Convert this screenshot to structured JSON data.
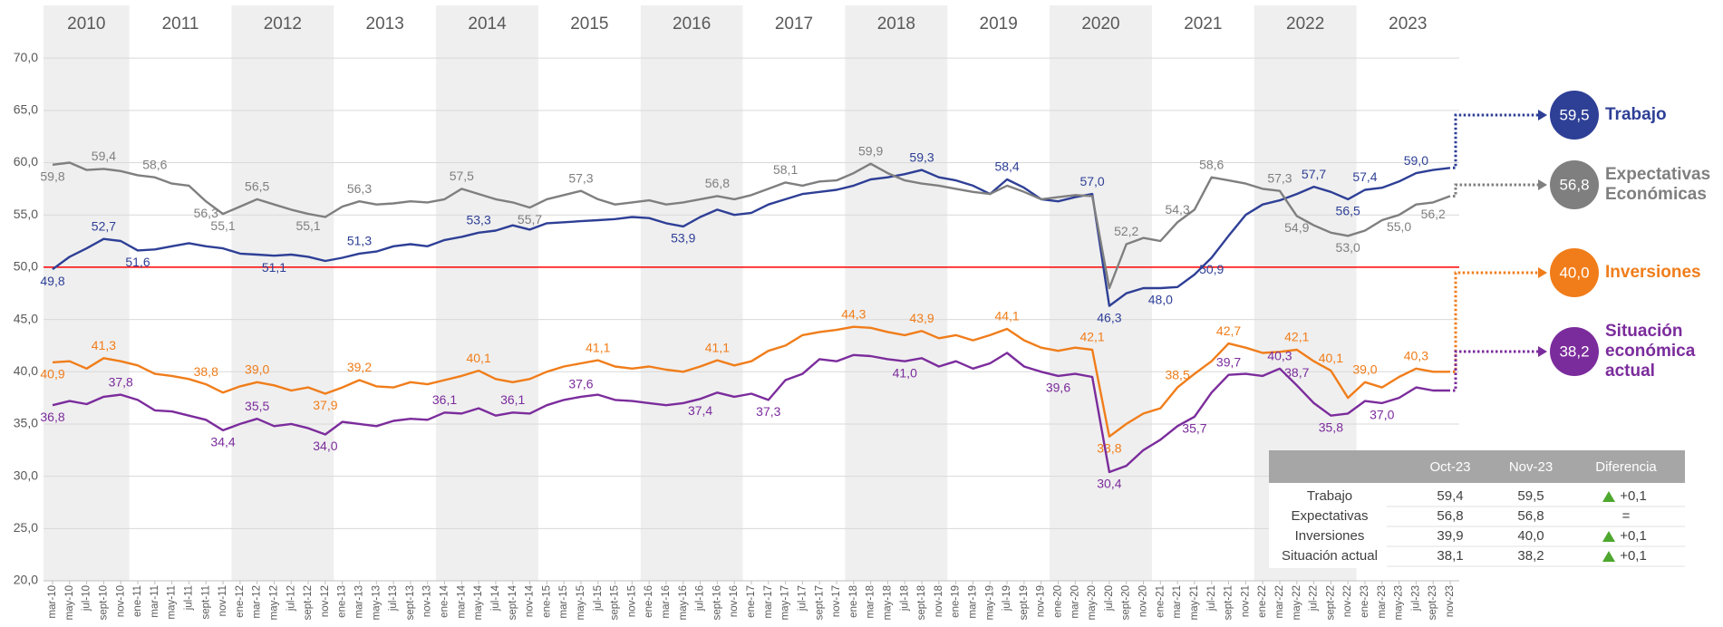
{
  "chart_data": {
    "type": "line",
    "years": [
      "2010",
      "2011",
      "2012",
      "2013",
      "2014",
      "2015",
      "2016",
      "2017",
      "2018",
      "2019",
      "2020",
      "2021",
      "2022",
      "2023"
    ],
    "categories": [
      "mar-10",
      "may-10",
      "jul-10",
      "sept-10",
      "nov-10",
      "ene-11",
      "mar-11",
      "may-11",
      "jul-11",
      "sept-11",
      "nov-11",
      "ene-12",
      "mar-12",
      "may-12",
      "jul-12",
      "sept-12",
      "nov-12",
      "ene-13",
      "mar-13",
      "may-13",
      "jul-13",
      "sept-13",
      "nov-13",
      "ene-14",
      "mar-14",
      "may-14",
      "jul-14",
      "sept-14",
      "nov-14",
      "ene-15",
      "mar-15",
      "may-15",
      "jul-15",
      "sept-15",
      "nov-15",
      "ene-16",
      "mar-16",
      "may-16",
      "jul-16",
      "sept-16",
      "nov-16",
      "ene-17",
      "mar-17",
      "may-17",
      "jul-17",
      "sept-17",
      "nov-17",
      "ene-18",
      "mar-18",
      "may-18",
      "jul-18",
      "sept-18",
      "nov-18",
      "ene-19",
      "mar-19",
      "may-19",
      "jul-19",
      "sept-19",
      "nov-19",
      "ene-20",
      "mar-20",
      "may-20",
      "jul-20",
      "sept-20",
      "nov-20",
      "ene-21",
      "mar-21",
      "may-21",
      "jul-21",
      "sept-21",
      "nov-21",
      "ene-22",
      "mar-22",
      "may-22",
      "jul-22",
      "sept-22",
      "nov-22",
      "ene-23",
      "mar-23",
      "may-23",
      "jul-23",
      "sept-23",
      "nov-23"
    ],
    "ylim": [
      20,
      71.4
    ],
    "yticks": [
      {
        "value": 20,
        "label": "20,0"
      },
      {
        "value": 25,
        "label": "25,0"
      },
      {
        "value": 30,
        "label": "30,0"
      },
      {
        "value": 35,
        "label": "35,0"
      },
      {
        "value": 40,
        "label": "40,0"
      },
      {
        "value": 45,
        "label": "45,0"
      },
      {
        "value": 50,
        "label": "50,0"
      },
      {
        "value": 55,
        "label": "55,0"
      },
      {
        "value": 60,
        "label": "60,0"
      },
      {
        "value": 65,
        "label": "65,0"
      },
      {
        "value": 70,
        "label": "70,0"
      }
    ],
    "grid": true,
    "reference_line": {
      "value": 50,
      "color": "#ff0000"
    },
    "series": [
      {
        "name": "Trabajo",
        "color": "#2e3f96",
        "values": [
          49.8,
          51.0,
          51.8,
          52.7,
          52.5,
          51.6,
          51.7,
          52.0,
          52.3,
          52.0,
          51.8,
          51.3,
          51.2,
          51.1,
          51.2,
          51.0,
          50.6,
          50.9,
          51.3,
          51.5,
          52.0,
          52.2,
          52.0,
          52.6,
          52.9,
          53.3,
          53.5,
          54.0,
          53.6,
          54.2,
          54.3,
          54.4,
          54.5,
          54.6,
          54.8,
          54.7,
          54.2,
          53.9,
          54.8,
          55.5,
          55.0,
          55.2,
          56.0,
          56.5,
          57.0,
          57.2,
          57.4,
          57.8,
          58.4,
          58.6,
          58.9,
          59.3,
          58.6,
          58.3,
          57.8,
          57.0,
          58.4,
          57.6,
          56.5,
          56.3,
          56.7,
          57.0,
          46.3,
          47.5,
          48.0,
          48.0,
          48.1,
          49.3,
          50.9,
          53.0,
          55.0,
          56.0,
          56.4,
          57.0,
          57.7,
          57.2,
          56.5,
          57.4,
          57.6,
          58.2,
          59.0,
          59.3,
          59.5
        ],
        "value_labels": [
          "49,8",
          null,
          null,
          "52,7",
          null,
          "51,6",
          null,
          null,
          null,
          null,
          null,
          null,
          null,
          "51,1",
          null,
          null,
          null,
          null,
          "51,3",
          null,
          null,
          null,
          null,
          null,
          null,
          "53,3",
          null,
          null,
          null,
          null,
          null,
          null,
          null,
          null,
          null,
          null,
          null,
          "53,9",
          null,
          null,
          null,
          null,
          null,
          null,
          null,
          null,
          null,
          null,
          null,
          null,
          null,
          "59,3",
          null,
          null,
          null,
          null,
          "58,4",
          null,
          null,
          null,
          null,
          "57,0",
          "46,3",
          null,
          null,
          "48,0",
          null,
          null,
          "50,9",
          null,
          null,
          null,
          null,
          null,
          "57,7",
          null,
          "56,5",
          "57,4",
          null,
          null,
          "59,0",
          null,
          "59,5"
        ]
      },
      {
        "name": "Expectativas Económicas",
        "color": "#7f7f7f",
        "values": [
          59.8,
          60.0,
          59.3,
          59.4,
          59.2,
          58.8,
          58.6,
          58.0,
          57.8,
          56.3,
          55.1,
          55.8,
          56.5,
          56.0,
          55.5,
          55.1,
          54.8,
          55.8,
          56.3,
          56.0,
          56.1,
          56.3,
          56.2,
          56.5,
          57.5,
          57.0,
          56.5,
          56.2,
          55.7,
          56.5,
          56.9,
          57.3,
          56.5,
          56.0,
          56.2,
          56.4,
          56.0,
          56.2,
          56.5,
          56.8,
          56.5,
          56.9,
          57.5,
          58.1,
          57.8,
          58.2,
          58.3,
          59.0,
          59.9,
          59.0,
          58.3,
          58.0,
          57.8,
          57.5,
          57.2,
          57.0,
          57.8,
          57.2,
          56.5,
          56.7,
          56.9,
          56.8,
          48.0,
          52.2,
          52.8,
          52.5,
          54.3,
          55.5,
          58.6,
          58.3,
          58.0,
          57.5,
          57.3,
          54.9,
          54.0,
          53.3,
          53.0,
          53.5,
          54.5,
          55.0,
          56.0,
          56.2,
          56.8
        ],
        "value_labels": [
          "59,8",
          null,
          null,
          "59,4",
          null,
          null,
          "58,6",
          null,
          null,
          "56,3",
          "55,1",
          null,
          "56,5",
          null,
          null,
          "55,1",
          null,
          null,
          "56,3",
          null,
          null,
          null,
          null,
          null,
          "57,5",
          null,
          null,
          null,
          "55,7",
          null,
          null,
          "57,3",
          null,
          null,
          null,
          null,
          null,
          null,
          null,
          "56,8",
          null,
          null,
          null,
          "58,1",
          null,
          null,
          null,
          null,
          "59,9",
          null,
          null,
          null,
          null,
          null,
          null,
          null,
          null,
          null,
          null,
          null,
          null,
          null,
          null,
          "52,2",
          null,
          null,
          "54,3",
          null,
          "58,6",
          null,
          null,
          null,
          "57,3",
          "54,9",
          null,
          null,
          "53,0",
          null,
          null,
          "55,0",
          null,
          "56,2",
          "56,8"
        ]
      },
      {
        "name": "Inversiones",
        "color": "#f07d1a",
        "values": [
          40.9,
          41.0,
          40.3,
          41.3,
          41.0,
          40.6,
          39.8,
          39.6,
          39.3,
          38.8,
          38.0,
          38.6,
          39.0,
          38.7,
          38.2,
          38.5,
          37.9,
          38.5,
          39.2,
          38.6,
          38.5,
          39.0,
          38.8,
          39.2,
          39.6,
          40.1,
          39.3,
          39.0,
          39.3,
          40.0,
          40.5,
          40.8,
          41.1,
          40.5,
          40.3,
          40.5,
          40.2,
          40.0,
          40.5,
          41.1,
          40.6,
          41.0,
          42.0,
          42.5,
          43.5,
          43.8,
          44.0,
          44.3,
          44.2,
          43.8,
          43.5,
          43.9,
          43.2,
          43.5,
          43.0,
          43.5,
          44.1,
          43.0,
          42.3,
          42.0,
          42.3,
          42.1,
          33.8,
          35.0,
          36.0,
          36.5,
          38.5,
          39.8,
          41.0,
          42.7,
          42.3,
          41.8,
          41.9,
          42.1,
          41.0,
          40.1,
          37.5,
          39.0,
          38.5,
          39.5,
          40.3,
          40.0,
          40.0
        ],
        "value_labels": [
          "40,9",
          null,
          null,
          "41,3",
          null,
          null,
          null,
          null,
          null,
          "38,8",
          null,
          null,
          "39,0",
          null,
          null,
          null,
          "37,9",
          null,
          "39,2",
          null,
          null,
          null,
          null,
          null,
          null,
          "40,1",
          null,
          null,
          null,
          null,
          null,
          null,
          "41,1",
          null,
          null,
          null,
          null,
          null,
          null,
          "41,1",
          null,
          null,
          null,
          null,
          null,
          null,
          null,
          "44,3",
          null,
          null,
          null,
          "43,9",
          null,
          null,
          null,
          null,
          "44,1",
          null,
          null,
          null,
          null,
          "42,1",
          "33,8",
          null,
          null,
          null,
          "38,5",
          null,
          null,
          "42,7",
          null,
          null,
          null,
          "42,1",
          null,
          "40,1",
          null,
          "39,0",
          null,
          null,
          "40,3",
          null,
          "40,0"
        ]
      },
      {
        "name": "Situación económica actual",
        "color": "#7b2c9c",
        "values": [
          36.8,
          37.2,
          36.9,
          37.6,
          37.8,
          37.3,
          36.3,
          36.2,
          35.8,
          35.4,
          34.4,
          35.0,
          35.5,
          34.8,
          35.0,
          34.6,
          34.0,
          35.2,
          35.0,
          34.8,
          35.3,
          35.5,
          35.4,
          36.1,
          36.0,
          36.5,
          35.8,
          36.1,
          36.0,
          36.8,
          37.3,
          37.6,
          37.8,
          37.3,
          37.2,
          37.0,
          36.8,
          37.0,
          37.4,
          38.0,
          37.6,
          37.9,
          37.3,
          39.2,
          39.8,
          41.2,
          41.0,
          41.6,
          41.5,
          41.2,
          41.0,
          41.3,
          40.5,
          41.0,
          40.3,
          40.8,
          41.8,
          40.5,
          40.0,
          39.6,
          39.8,
          39.5,
          30.4,
          31.0,
          32.5,
          33.5,
          34.8,
          35.7,
          38.0,
          39.7,
          39.8,
          39.6,
          40.3,
          38.7,
          37.0,
          35.8,
          36.0,
          37.2,
          37.0,
          37.5,
          38.5,
          38.2,
          38.2
        ],
        "value_labels": [
          "36,8",
          null,
          null,
          null,
          "37,8",
          null,
          null,
          null,
          null,
          null,
          "34,4",
          null,
          "35,5",
          null,
          null,
          null,
          "34,0",
          null,
          null,
          null,
          null,
          null,
          null,
          "36,1",
          null,
          null,
          null,
          "36,1",
          null,
          null,
          null,
          "37,6",
          null,
          null,
          null,
          null,
          null,
          null,
          "37,4",
          null,
          null,
          null,
          "37,3",
          null,
          null,
          null,
          null,
          null,
          null,
          null,
          "41,0",
          null,
          null,
          null,
          null,
          null,
          null,
          null,
          null,
          "39,6",
          null,
          null,
          "30,4",
          null,
          null,
          null,
          null,
          "35,7",
          null,
          "39,7",
          null,
          null,
          "40,3",
          "38,7",
          null,
          "35,8",
          null,
          null,
          "37,0",
          null,
          null,
          null,
          "38,2"
        ]
      }
    ]
  },
  "table": {
    "header": [
      "Oct-23",
      "Nov-23",
      "Diferencia"
    ],
    "rows": [
      [
        "Trabajo",
        "59,4",
        "59,5",
        "+0,1"
      ],
      [
        "Expectativas",
        "56,8",
        "56,8",
        "="
      ],
      [
        "Inversiones",
        "39,9",
        "40,0",
        "+0,1"
      ],
      [
        "Situación actual",
        "38,1",
        "38,2",
        "+0,1"
      ]
    ]
  }
}
